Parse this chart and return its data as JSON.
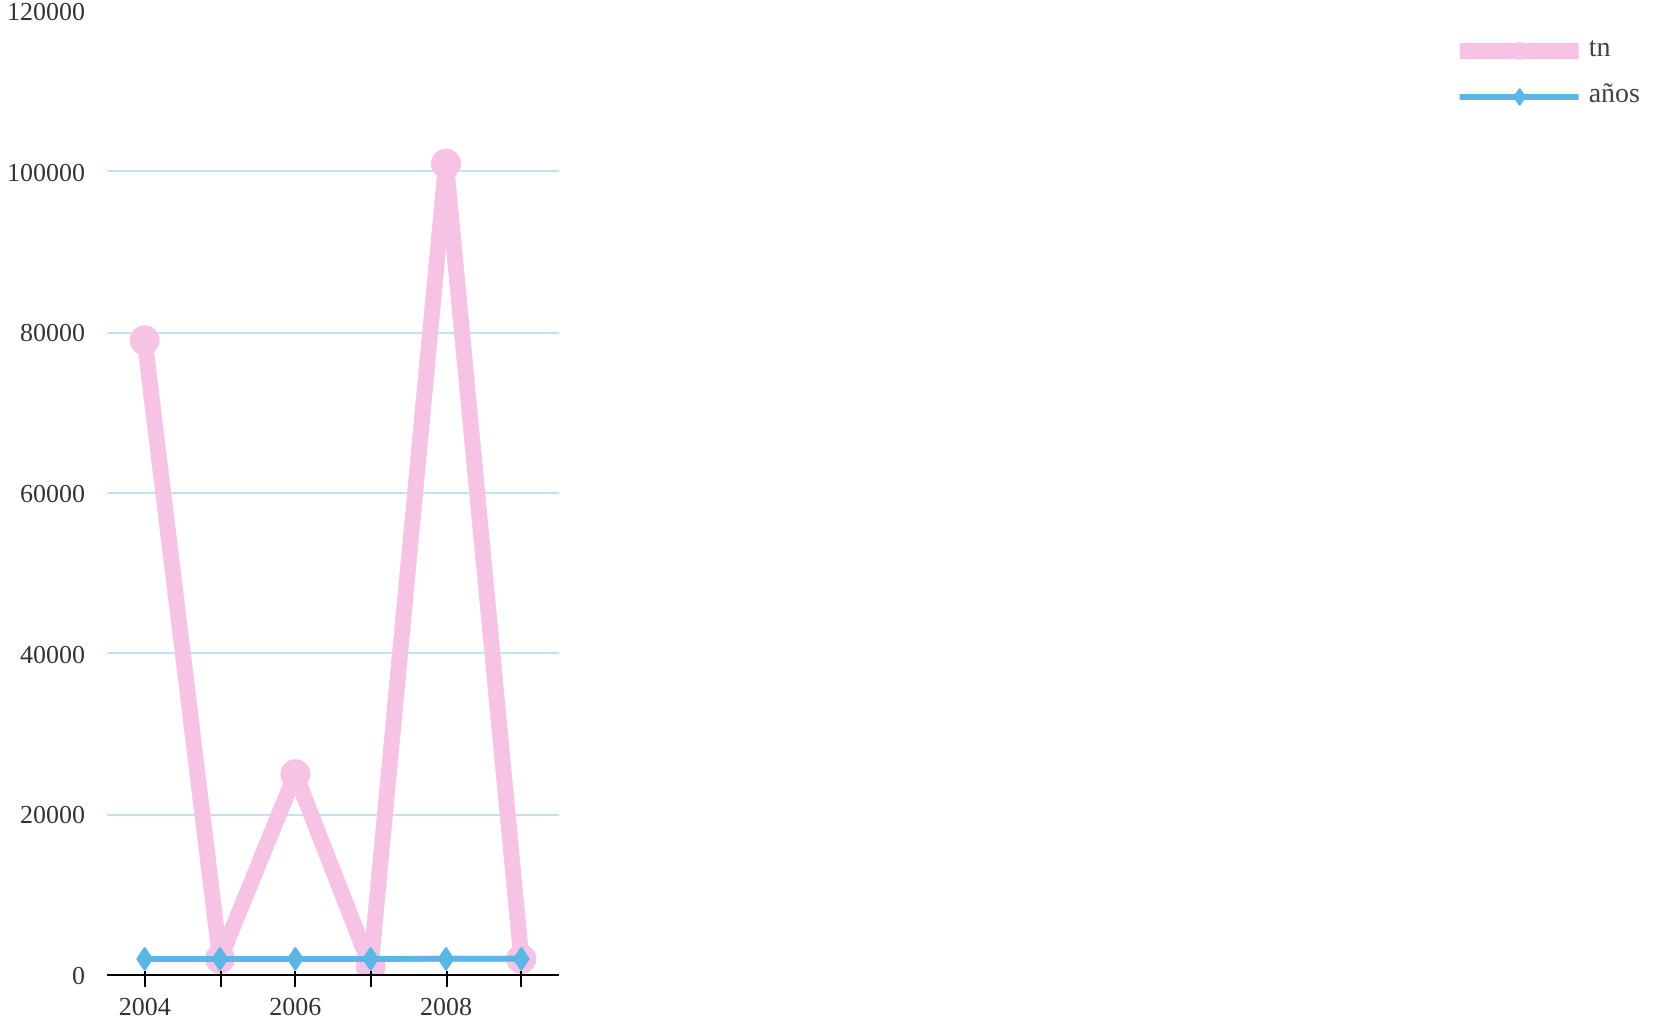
{
  "chart_data": {
    "type": "line",
    "categories": [
      "2004",
      null,
      "2006",
      null,
      "2008",
      null
    ],
    "ylim": [
      0,
      120000
    ],
    "yticks": [
      0,
      20000,
      40000,
      60000,
      80000,
      100000,
      120000
    ],
    "grid": "y",
    "legend": "right",
    "series": [
      {
        "name": "tn",
        "color": "#f7c3e4",
        "marker": "circle",
        "values": [
          79000,
          2000,
          25000,
          1000,
          101000,
          2000
        ]
      },
      {
        "name": "años",
        "color": "#5ab6e6",
        "marker": "diamond",
        "values": [
          2004,
          2005,
          2006,
          2007,
          2008,
          2009
        ]
      }
    ]
  }
}
